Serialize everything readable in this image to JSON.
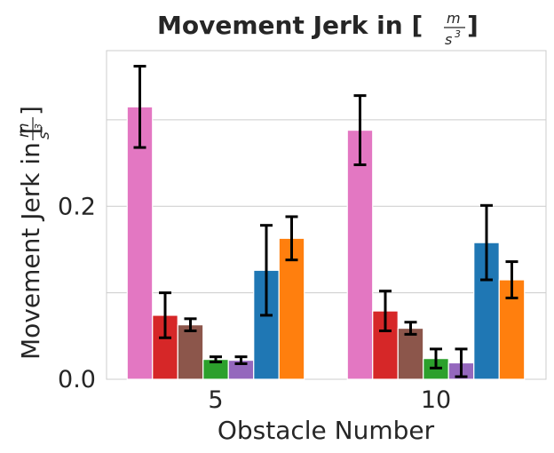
{
  "chart_data": {
    "type": "bar",
    "title": "Movement Jerk in [",
    "title_unit_num": "m",
    "title_unit_den": "s",
    "title_unit_exp": "3",
    "title_suffix": "]",
    "xlabel": "Obstacle Number",
    "ylabel": "Movement Jerk in [",
    "ylabel_unit_num": "m",
    "ylabel_unit_den": "s",
    "ylabel_unit_exp": "3",
    "ylabel_suffix": "]",
    "categories": [
      "5",
      "10"
    ],
    "ylim": [
      0.0,
      0.38
    ],
    "yticks": [
      0.0,
      0.1,
      0.2,
      0.3
    ],
    "ytick_labels": [
      "0.0",
      "",
      "0.2",
      ""
    ],
    "grid": true,
    "series": [
      {
        "color": "#e377c2",
        "values": [
          0.315,
          0.288
        ],
        "errors": [
          0.047,
          0.04
        ]
      },
      {
        "color": "#d62728",
        "values": [
          0.074,
          0.079
        ],
        "errors": [
          0.026,
          0.023
        ]
      },
      {
        "color": "#8c564b",
        "values": [
          0.063,
          0.059
        ],
        "errors": [
          0.007,
          0.007
        ]
      },
      {
        "color": "#2ca02c",
        "values": [
          0.023,
          0.024
        ],
        "errors": [
          0.003,
          0.011
        ]
      },
      {
        "color": "#9467bd",
        "values": [
          0.022,
          0.019
        ],
        "errors": [
          0.004,
          0.016
        ]
      },
      {
        "color": "#1f77b4",
        "values": [
          0.126,
          0.158
        ],
        "errors": [
          0.052,
          0.043
        ]
      },
      {
        "color": "#ff7f0e",
        "values": [
          0.163,
          0.115
        ],
        "errors": [
          0.025,
          0.021
        ]
      }
    ]
  }
}
